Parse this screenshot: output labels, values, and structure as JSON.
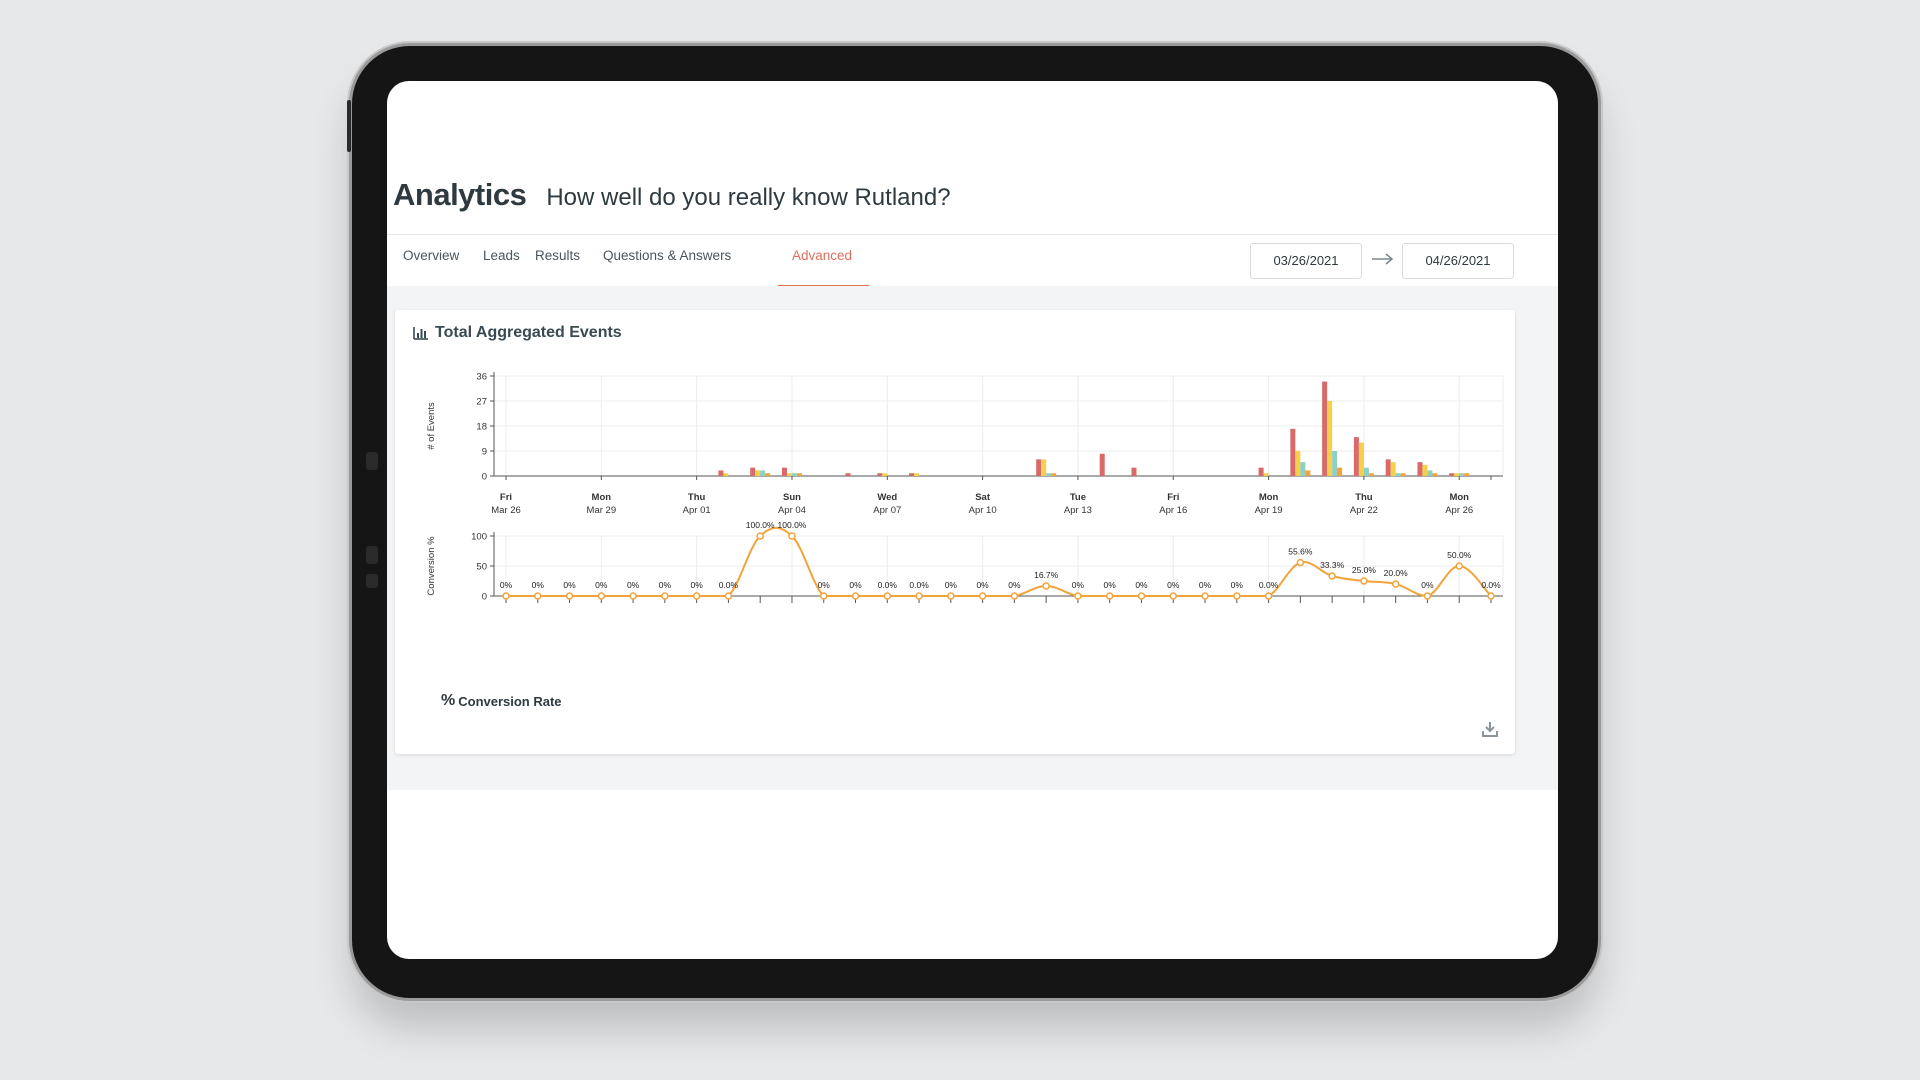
{
  "header": {
    "brand": "Analytics",
    "quiz_title": "How well do you really know Rutland?"
  },
  "tabs": [
    {
      "label": "Overview",
      "active": false
    },
    {
      "label": "Leads",
      "active": false
    },
    {
      "label": "Results",
      "active": false
    },
    {
      "label": "Questions & Answers",
      "active": false
    },
    {
      "label": "Advanced",
      "active": true
    }
  ],
  "date_range": {
    "start": "03/26/2021",
    "end": "04/26/2021"
  },
  "card": {
    "title": "Total Aggregated Events",
    "conversion_legend": "Conversion Rate"
  },
  "colors": {
    "accent": "#e0705c",
    "series_red": "#d86a6a",
    "series_yellow": "#f6d04d",
    "series_teal": "#8ed1c3",
    "series_orange": "#f2a33a"
  },
  "chart_data": [
    {
      "type": "bar",
      "ylabel": "# of Events",
      "ylim": [
        0,
        36
      ],
      "yticks": [
        0,
        9,
        18,
        27,
        36
      ],
      "x": [
        "2021-03-26",
        "2021-03-27",
        "2021-03-28",
        "2021-03-29",
        "2021-03-30",
        "2021-03-31",
        "2021-04-01",
        "2021-04-02",
        "2021-04-03",
        "2021-04-04",
        "2021-04-05",
        "2021-04-06",
        "2021-04-07",
        "2021-04-08",
        "2021-04-09",
        "2021-04-10",
        "2021-04-11",
        "2021-04-12",
        "2021-04-13",
        "2021-04-14",
        "2021-04-15",
        "2021-04-16",
        "2021-04-17",
        "2021-04-18",
        "2021-04-19",
        "2021-04-20",
        "2021-04-21",
        "2021-04-22",
        "2021-04-23",
        "2021-04-24",
        "2021-04-25",
        "2021-04-26"
      ],
      "tick_labels": [
        {
          "day": "Fri",
          "date": "Mar 26"
        },
        {
          "day": "Mon",
          "date": "Mar 29"
        },
        {
          "day": "Thu",
          "date": "Apr 01"
        },
        {
          "day": "Sun",
          "date": "Apr 04"
        },
        {
          "day": "Wed",
          "date": "Apr 07"
        },
        {
          "day": "Sat",
          "date": "Apr 10"
        },
        {
          "day": "Tue",
          "date": "Apr 13"
        },
        {
          "day": "Fri",
          "date": "Apr 16"
        },
        {
          "day": "Mon",
          "date": "Apr 19"
        },
        {
          "day": "Thu",
          "date": "Apr 22"
        },
        {
          "day": "Mon",
          "date": "Apr 26"
        }
      ],
      "series": [
        {
          "values": [
            0,
            0,
            0,
            0,
            0,
            0,
            0,
            2,
            3,
            3,
            0,
            1,
            1,
            1,
            0,
            0,
            0,
            6,
            0,
            8,
            3,
            0,
            0,
            0,
            3,
            17,
            34,
            14,
            6,
            5,
            1,
            0
          ]
        },
        {
          "values": [
            0,
            0,
            0,
            0,
            0,
            0,
            0,
            1,
            2,
            1,
            0,
            0,
            1,
            1,
            0,
            0,
            0,
            6,
            0,
            0,
            0,
            0,
            0,
            0,
            1,
            9,
            27,
            12,
            5,
            4,
            1,
            0
          ]
        },
        {
          "values": [
            0,
            0,
            0,
            0,
            0,
            0,
            0,
            0,
            2,
            1,
            0,
            0,
            0,
            0,
            0,
            0,
            0,
            1,
            0,
            0,
            0,
            0,
            0,
            0,
            0,
            5,
            9,
            3,
            1,
            2,
            1,
            0
          ]
        },
        {
          "values": [
            0,
            0,
            0,
            0,
            0,
            0,
            0,
            0,
            1,
            1,
            0,
            0,
            0,
            0,
            0,
            0,
            0,
            1,
            0,
            0,
            0,
            0,
            0,
            0,
            0,
            2,
            3,
            1,
            1,
            1,
            1,
            0
          ]
        }
      ]
    },
    {
      "type": "line",
      "ylabel": "Conversion %",
      "ylim": [
        0,
        100
      ],
      "yticks": [
        0,
        50,
        100
      ],
      "values": [
        0,
        0,
        0,
        0,
        0,
        0,
        0,
        0,
        100,
        100,
        0,
        0,
        0,
        0,
        0,
        0,
        0,
        16.7,
        0,
        0,
        0,
        0,
        0,
        0,
        0,
        55.6,
        33.3,
        25.0,
        20.0,
        0,
        50.0,
        0
      ],
      "point_labels": [
        "0%",
        "0%",
        "0%",
        "0%",
        "0%",
        "0%",
        "0%",
        "0.0%",
        "100.0%",
        "100.0%",
        "0%",
        "0%",
        "0.0%",
        "0.0%",
        "0%",
        "0%",
        "0%",
        "16.7%",
        "0%",
        "0%",
        "0%",
        "0%",
        "0%",
        "0%",
        "0.0%",
        "55.6%",
        "33.3%",
        "25.0%",
        "20.0%",
        "0%",
        "50.0%",
        "0.0%"
      ]
    }
  ]
}
